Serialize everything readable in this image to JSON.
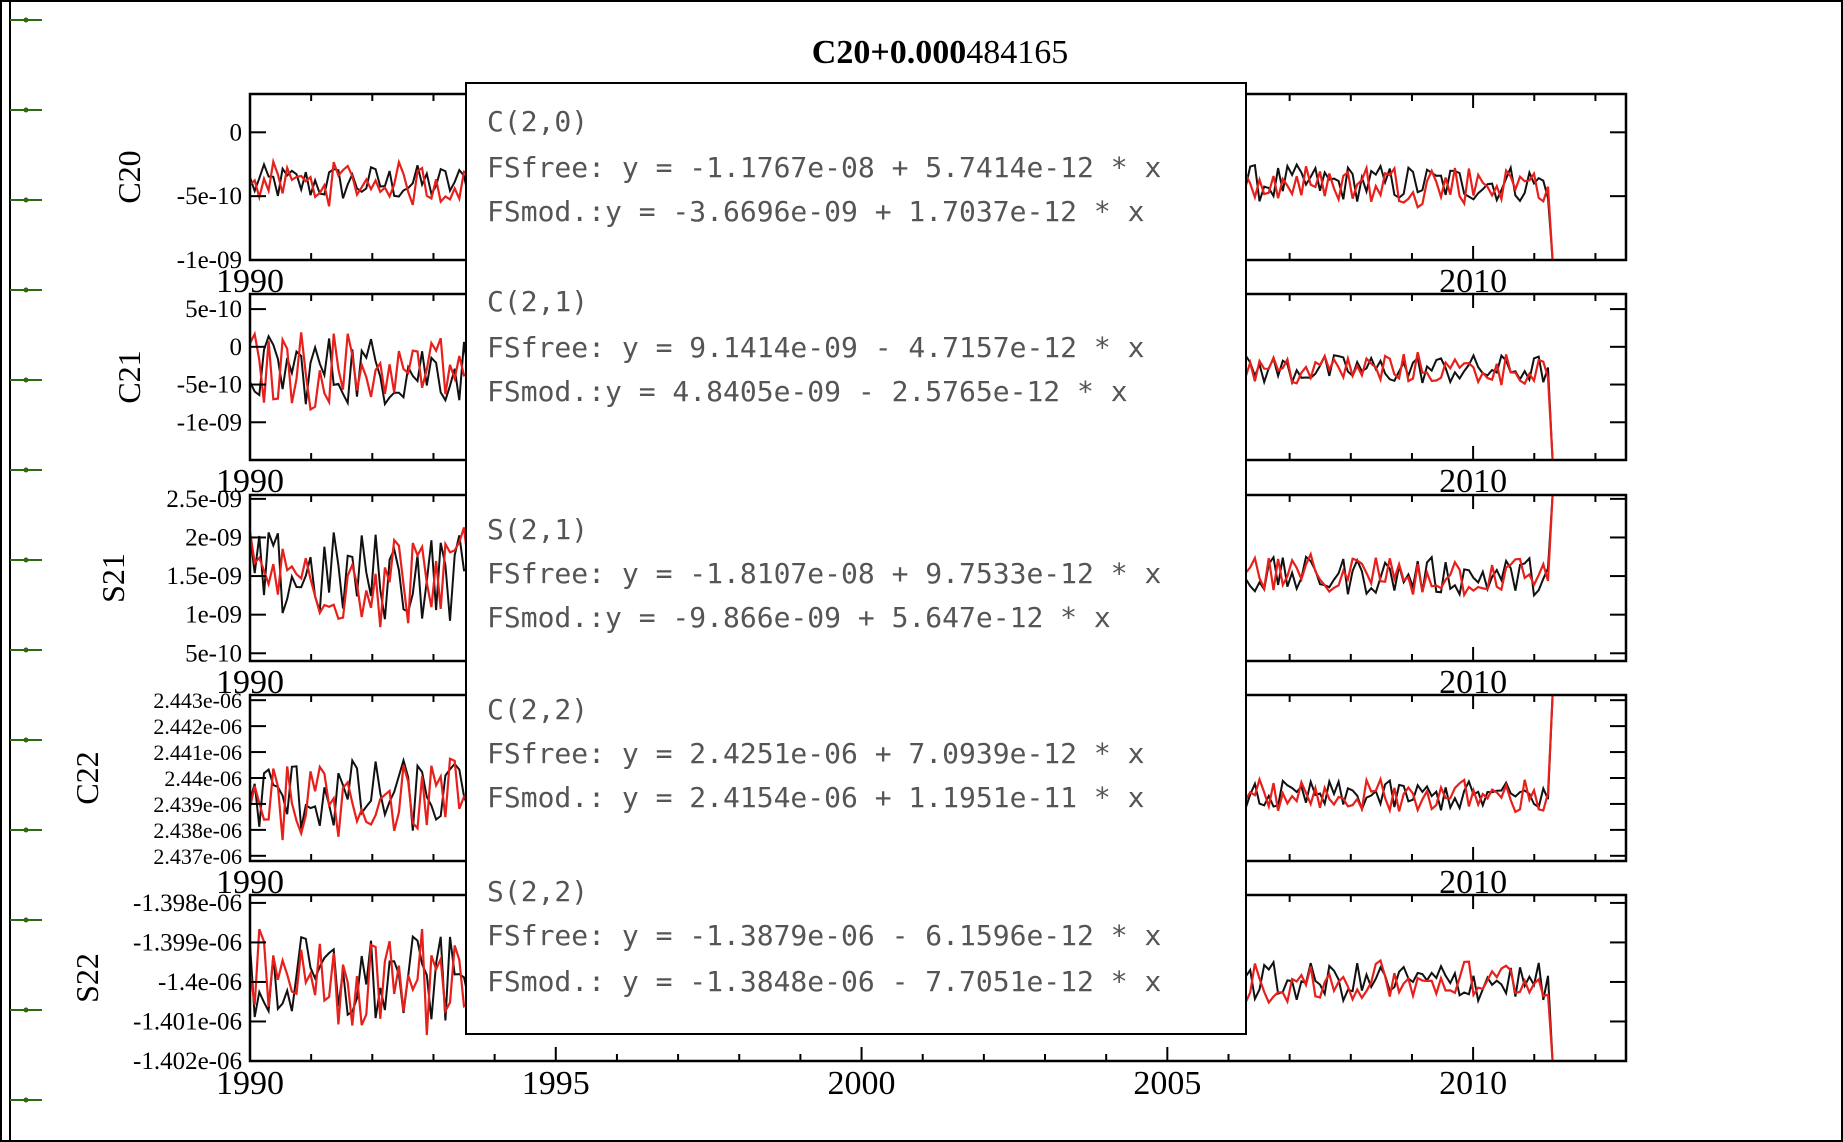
{
  "colors": {
    "series_black": "#111111",
    "series_red": "#e8201c",
    "axis": "#000000",
    "left_ticks": "#2e6b10",
    "legend_text": "#555555"
  },
  "chart_data": {
    "type": "line",
    "title_prefix": "C20+0.000",
    "title_suffix": "484165",
    "xlim": [
      1990,
      2012.5
    ],
    "x_ticks": [
      1990,
      1995,
      2000,
      2005,
      2010
    ],
    "x_tick_labels": [
      "1990",
      "1995",
      "2000",
      "2005",
      "2010"
    ],
    "panels": [
      {
        "ylabel": "C20",
        "ylim": [
          -1e-09,
          3e-10
        ],
        "y_ticks": [
          0,
          -5e-10,
          -1e-09
        ],
        "y_tick_labels": [
          "0",
          "-5e-10",
          "-1e-09"
        ],
        "baseline": -4e-10,
        "noise_amp": 1.5e-10
      },
      {
        "ylabel": "C21",
        "ylim": [
          -1.5e-09,
          7e-10
        ],
        "y_ticks": [
          5e-10,
          0,
          -5e-10,
          -1e-09
        ],
        "y_tick_labels": [
          "5e-10",
          "0",
          "-5e-10",
          "-1e-09"
        ],
        "baseline": -3e-10,
        "noise_amp": 2e-10
      },
      {
        "ylabel": "S21",
        "ylim": [
          4e-10,
          2.55e-09
        ],
        "y_ticks": [
          2.5e-09,
          2e-09,
          1.5e-09,
          1e-09,
          5e-10
        ],
        "y_tick_labels": [
          "2.5e-09",
          "2e-09",
          "1.5e-09",
          "1e-09",
          "5e-10"
        ],
        "baseline": 1.5e-09,
        "noise_amp": 2.5e-10
      },
      {
        "ylabel": "C22",
        "ylim": [
          2.4368e-06,
          2.4432e-06
        ],
        "y_ticks": [
          2.443e-06,
          2.442e-06,
          2.441e-06,
          2.44e-06,
          2.439e-06,
          2.438e-06,
          2.437e-06
        ],
        "y_tick_labels": [
          "2.443e-06",
          "2.442e-06",
          "2.441e-06",
          "2.44e-06",
          "2.439e-06",
          "2.438e-06",
          "2.437e-06"
        ],
        "baseline": 2.4393e-06,
        "noise_amp": 6e-10
      },
      {
        "ylabel": "S22",
        "ylim": [
          -1.402e-06,
          -1.3978e-06
        ],
        "y_ticks": [
          -1.398e-06,
          -1.399e-06,
          -1.4e-06,
          -1.401e-06,
          -1.402e-06
        ],
        "y_tick_labels": [
          "-1.398e-06",
          "-1.399e-06",
          "-1.4e-06",
          "-1.401e-06",
          "-1.402e-06"
        ],
        "baseline": -1.4e-06,
        "noise_amp": 5e-10
      }
    ],
    "inner_year_labels": [
      "1990",
      "2010"
    ],
    "legend": [
      {
        "name": "C(2,0)",
        "line1": "FSfree: y = -1.1767e-08 + 5.7414e-12 * x",
        "line2": "FSmod.:y = -3.6696e-09 + 1.7037e-12 * x"
      },
      {
        "name": "C(2,1)",
        "line1": "FSfree: y = 9.1414e-09 - 4.7157e-12 * x",
        "line2": "FSmod.:y = 4.8405e-09 - 2.5765e-12 * x"
      },
      {
        "name": "S(2,1)",
        "line1": "FSfree: y = -1.8107e-08 + 9.7533e-12 * x",
        "line2": "FSmod.:y = -9.866e-09 + 5.647e-12 * x"
      },
      {
        "name": "C(2,2)",
        "line1": "FSfree: y = 2.4251e-06 + 7.0939e-12 * x",
        "line2": "FSmod.: y = 2.4154e-06 + 1.1951e-11 * x"
      },
      {
        "name": "S(2,2)",
        "line1": "FSfree: y = -1.3879e-06 - 6.1596e-12 * x",
        "line2": "FSmod.: y = -1.3848e-06 - 7.7051e-12 * x"
      }
    ]
  }
}
